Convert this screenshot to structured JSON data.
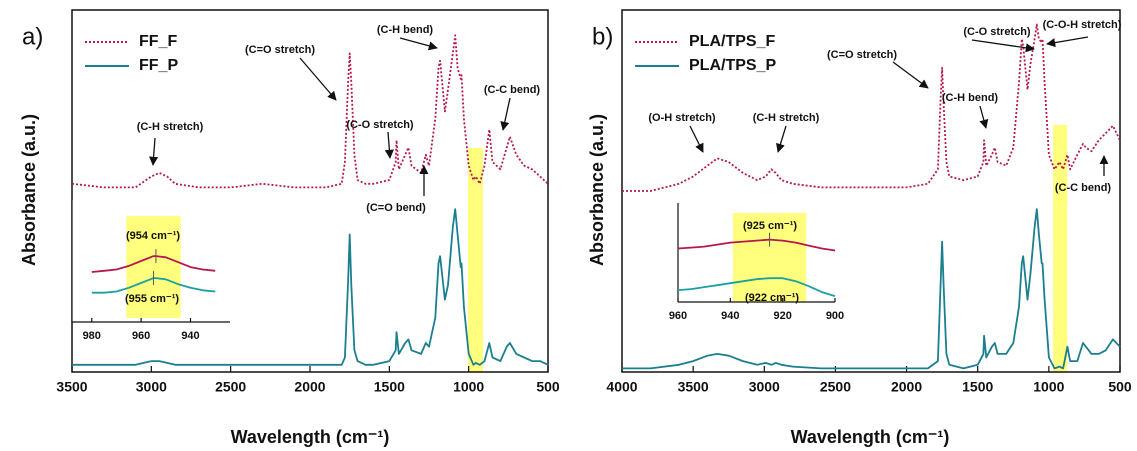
{
  "chart_data": [
    {
      "type": "line",
      "panel_label": "a)",
      "xlabel": "Wavelength (cm⁻¹)",
      "ylabel": "Absorbance (a.u.)",
      "x": [
        3500,
        3300,
        3100,
        3000,
        2950,
        2900,
        2850,
        2700,
        2500,
        2300,
        2100,
        1900,
        1800,
        1780,
        1760,
        1750,
        1740,
        1720,
        1700,
        1650,
        1600,
        1500,
        1460,
        1455,
        1440,
        1400,
        1380,
        1360,
        1300,
        1270,
        1250,
        1210,
        1190,
        1180,
        1150,
        1130,
        1100,
        1085,
        1070,
        1050,
        1045,
        1030,
        1000,
        970,
        955,
        930,
        900,
        870,
        850,
        800,
        760,
        740,
        700,
        650,
        600,
        550,
        500
      ],
      "series": [
        {
          "name": "FF_F",
          "color": "#b5174f",
          "style": "dotted",
          "values": [
            52,
            51,
            51,
            54,
            55,
            54,
            52,
            51,
            51,
            52,
            51,
            51,
            52,
            58,
            80,
            88,
            80,
            60,
            53,
            52,
            52,
            53,
            58,
            64,
            56,
            60,
            62,
            57,
            55,
            60,
            57,
            70,
            84,
            86,
            72,
            78,
            88,
            93,
            84,
            81,
            82,
            70,
            57,
            53,
            54,
            52,
            57,
            67,
            58,
            56,
            62,
            65,
            60,
            57,
            56,
            54,
            52
          ]
        },
        {
          "name": "FF_P",
          "color": "#1b7f8f",
          "style": "solid",
          "values": [
            2,
            2,
            2,
            3,
            3,
            2.5,
            2,
            2,
            2,
            2,
            2,
            2,
            2,
            4,
            25,
            38,
            24,
            6,
            3,
            2,
            2,
            3,
            6,
            11,
            5,
            8,
            9,
            6,
            5,
            8,
            7,
            15,
            30,
            32,
            20,
            24,
            40,
            45,
            38,
            29,
            30,
            18,
            5,
            2,
            2.5,
            2,
            3,
            8,
            4,
            3,
            7,
            8,
            5,
            4,
            3,
            3,
            2
          ]
        }
      ],
      "xlim": [
        3500,
        500
      ],
      "xticks": [
        3500,
        3000,
        2500,
        2000,
        1500,
        1000,
        500
      ],
      "ylim": [
        0,
        100
      ],
      "highlight": [
        1005,
        910
      ],
      "legend": "upper left",
      "annotations": [
        "(C-H stretch)",
        "(C=O stretch)",
        "(C-O stretch)",
        "(C-H bend)",
        "(C-C bend)",
        "(C=O bend)"
      ]
    },
    {
      "type": "line",
      "x": [
        980,
        975,
        970,
        965,
        960,
        955,
        954,
        950,
        945,
        940,
        935,
        930
      ],
      "series": [
        {
          "color": "#b5174f",
          "style": "solid",
          "values": [
            4.1,
            4.2,
            4.3,
            4.6,
            5.0,
            5.4,
            5.4,
            5.3,
            4.9,
            4.5,
            4.3,
            4.2
          ]
        },
        {
          "color": "#1b9fa0",
          "style": "solid",
          "values": [
            2.4,
            2.4,
            2.5,
            2.8,
            3.2,
            3.6,
            3.6,
            3.5,
            3.1,
            2.8,
            2.6,
            2.5
          ]
        }
      ],
      "xlim": [
        988,
        924
      ],
      "xticks": [
        980,
        960,
        940
      ],
      "ylim": [
        0,
        10
      ],
      "highlight": [
        966,
        944
      ],
      "annotations": [
        "(954 cm⁻¹)",
        "(955 cm⁻¹)"
      ]
    },
    {
      "type": "line",
      "panel_label": "b)",
      "xlabel": "Wavelength (cm⁻¹)",
      "ylabel": "Absorbance (a.u.)",
      "x": [
        4000,
        3800,
        3600,
        3500,
        3400,
        3330,
        3250,
        3150,
        3050,
        2990,
        2950,
        2920,
        2880,
        2800,
        2600,
        2400,
        2200,
        2000,
        1850,
        1780,
        1760,
        1750,
        1740,
        1720,
        1700,
        1600,
        1500,
        1460,
        1455,
        1440,
        1400,
        1380,
        1360,
        1300,
        1250,
        1210,
        1190,
        1180,
        1150,
        1130,
        1100,
        1085,
        1070,
        1050,
        1045,
        1030,
        1000,
        960,
        925,
        900,
        870,
        850,
        800,
        760,
        740,
        700,
        650,
        600,
        550,
        500
      ],
      "series": [
        {
          "name": "PLA/TPS_F",
          "color": "#b5174f",
          "style": "dotted",
          "values": [
            50,
            50,
            52,
            54,
            57,
            59,
            58,
            55,
            53,
            54,
            56,
            55,
            53,
            52,
            51,
            51,
            51,
            51,
            52,
            56,
            76,
            84,
            74,
            58,
            54,
            53,
            54,
            58,
            64,
            57,
            60,
            62,
            58,
            57,
            62,
            80,
            92,
            90,
            78,
            85,
            92,
            96,
            92,
            91,
            92,
            80,
            60,
            56,
            58,
            56,
            60,
            56,
            60,
            63,
            62,
            61,
            64,
            66,
            68,
            64
          ]
        },
        {
          "name": "PLA/TPS_P",
          "color": "#1b7f8f",
          "style": "solid",
          "values": [
            1,
            1,
            2,
            3,
            4.5,
            5,
            4.5,
            3,
            2,
            2.5,
            2,
            2.5,
            2,
            1.5,
            1,
            1,
            1,
            1,
            1,
            3,
            25,
            36,
            24,
            5,
            2,
            1,
            2,
            5,
            10,
            4,
            7,
            8,
            5,
            5,
            8,
            18,
            30,
            32,
            20,
            27,
            40,
            45,
            38,
            30,
            30,
            20,
            4,
            1,
            1.5,
            1,
            7,
            3,
            3,
            8,
            7,
            5,
            5,
            6,
            9,
            7
          ]
        }
      ],
      "xlim": [
        4000,
        500
      ],
      "xticks": [
        4000,
        3500,
        3000,
        2500,
        2000,
        1500,
        1000,
        500
      ],
      "ylim": [
        0,
        100
      ],
      "highlight": [
        970,
        870
      ],
      "legend": "upper left",
      "annotations": [
        "(O-H stretch)",
        "(C-H stretch)",
        "(C=O stretch)",
        "(C-H bend)",
        "(C-O stretch)",
        "(C-O-H stretch)",
        "(C-C bend)"
      ]
    },
    {
      "type": "line",
      "x": [
        960,
        955,
        950,
        945,
        940,
        935,
        930,
        925,
        920,
        915,
        910,
        905,
        900
      ],
      "series": [
        {
          "color": "#b5174f",
          "style": "solid",
          "values": [
            5.4,
            5.5,
            5.6,
            5.8,
            6.0,
            6.1,
            6.2,
            6.3,
            6.2,
            6.0,
            5.7,
            5.4,
            5.2
          ]
        },
        {
          "color": "#1b9fa0",
          "style": "solid",
          "values": [
            1.2,
            1.3,
            1.5,
            1.7,
            1.9,
            2.1,
            2.3,
            2.4,
            2.4,
            2.1,
            1.6,
            1.0,
            0.6
          ]
        }
      ],
      "xlim": [
        960,
        900
      ],
      "xticks": [
        960,
        940,
        920,
        900
      ],
      "ylim": [
        0,
        10
      ],
      "highlight": [
        939,
        911
      ],
      "annotations": [
        "(925 cm⁻¹)",
        "(922 cm⁻¹)"
      ]
    }
  ]
}
